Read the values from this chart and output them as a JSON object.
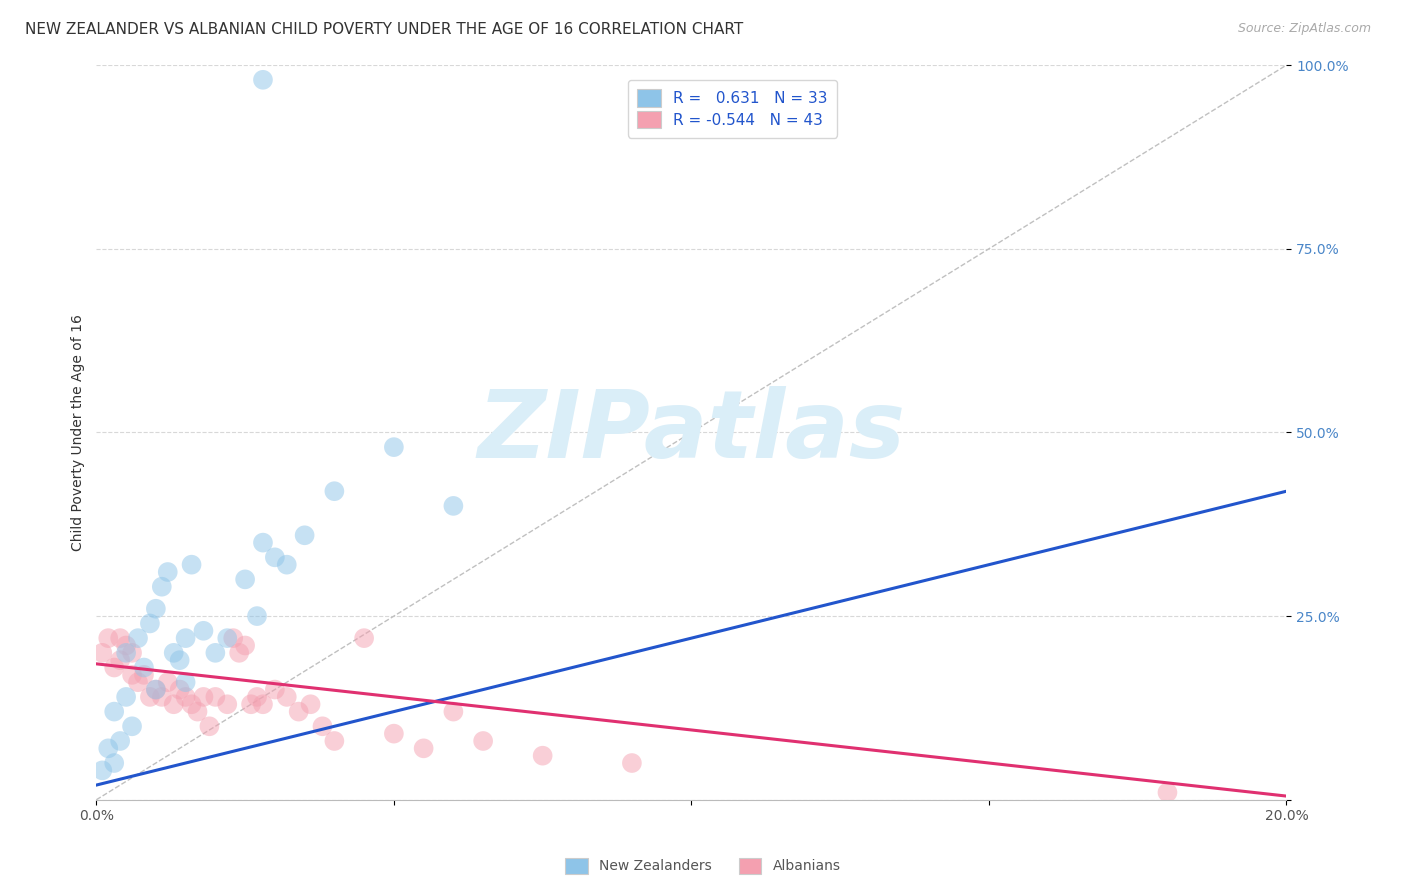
{
  "title": "NEW ZEALANDER VS ALBANIAN CHILD POVERTY UNDER THE AGE OF 16 CORRELATION CHART",
  "source": "Source: ZipAtlas.com",
  "ylabel": "Child Poverty Under the Age of 16",
  "xlim": [
    0.0,
    0.2
  ],
  "ylim": [
    0.0,
    1.0
  ],
  "yticks": [
    0.0,
    0.25,
    0.5,
    0.75,
    1.0
  ],
  "ytick_labels": [
    "",
    "25.0%",
    "50.0%",
    "75.0%",
    "100.0%"
  ],
  "xtick_positions": [
    0.0,
    0.05,
    0.1,
    0.15,
    0.2
  ],
  "xtick_labels": [
    "0.0%",
    "",
    "",
    "",
    "20.0%"
  ],
  "nz_R": 0.631,
  "nz_N": 33,
  "alb_R": -0.544,
  "alb_N": 43,
  "nz_color": "#8ec4e8",
  "alb_color": "#f4a0b0",
  "nz_line_color": "#2255cc",
  "alb_line_color": "#e03070",
  "ref_line_color": "#c0c0c0",
  "background_color": "#ffffff",
  "grid_color": "#d8d8d8",
  "watermark_text": "ZIPatlas",
  "watermark_color": "#daeef8",
  "nz_line_x0": 0.0,
  "nz_line_y0": 0.02,
  "nz_line_x1": 0.2,
  "nz_line_y1": 0.42,
  "alb_line_x0": 0.0,
  "alb_line_y0": 0.185,
  "alb_line_x1": 0.2,
  "alb_line_y1": 0.005,
  "nz_scatter_x": [
    0.001,
    0.002,
    0.003,
    0.003,
    0.004,
    0.005,
    0.005,
    0.006,
    0.007,
    0.008,
    0.009,
    0.01,
    0.01,
    0.011,
    0.012,
    0.013,
    0.014,
    0.015,
    0.015,
    0.016,
    0.018,
    0.02,
    0.022,
    0.025,
    0.027,
    0.028,
    0.03,
    0.032,
    0.035,
    0.04,
    0.05,
    0.06,
    0.028
  ],
  "nz_scatter_y": [
    0.04,
    0.07,
    0.05,
    0.12,
    0.08,
    0.14,
    0.2,
    0.1,
    0.22,
    0.18,
    0.24,
    0.26,
    0.15,
    0.29,
    0.31,
    0.2,
    0.19,
    0.22,
    0.16,
    0.32,
    0.23,
    0.2,
    0.22,
    0.3,
    0.25,
    0.35,
    0.33,
    0.32,
    0.36,
    0.42,
    0.48,
    0.4,
    0.98
  ],
  "alb_scatter_x": [
    0.001,
    0.002,
    0.003,
    0.004,
    0.004,
    0.005,
    0.006,
    0.006,
    0.007,
    0.008,
    0.009,
    0.01,
    0.011,
    0.012,
    0.013,
    0.014,
    0.015,
    0.016,
    0.017,
    0.018,
    0.019,
    0.02,
    0.022,
    0.023,
    0.024,
    0.025,
    0.026,
    0.027,
    0.028,
    0.03,
    0.032,
    0.034,
    0.036,
    0.038,
    0.04,
    0.045,
    0.05,
    0.055,
    0.06,
    0.065,
    0.075,
    0.09,
    0.18
  ],
  "alb_scatter_y": [
    0.2,
    0.22,
    0.18,
    0.19,
    0.22,
    0.21,
    0.17,
    0.2,
    0.16,
    0.17,
    0.14,
    0.15,
    0.14,
    0.16,
    0.13,
    0.15,
    0.14,
    0.13,
    0.12,
    0.14,
    0.1,
    0.14,
    0.13,
    0.22,
    0.2,
    0.21,
    0.13,
    0.14,
    0.13,
    0.15,
    0.14,
    0.12,
    0.13,
    0.1,
    0.08,
    0.22,
    0.09,
    0.07,
    0.12,
    0.08,
    0.06,
    0.05,
    0.01
  ],
  "title_fontsize": 11,
  "axis_label_fontsize": 10,
  "tick_fontsize": 10,
  "legend_fontsize": 11,
  "source_fontsize": 9
}
